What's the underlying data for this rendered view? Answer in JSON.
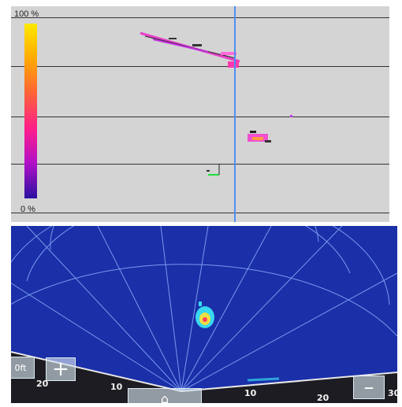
{
  "histogram": {
    "scale_max_label": "100 %",
    "scale_min_label": "0 %"
  },
  "sonar": {
    "zoom_in_label": "+",
    "zoom_out_label": "–",
    "depth_unit_label": "0ft",
    "range_labels": [
      "20",
      "10",
      "10",
      "20",
      "30"
    ]
  },
  "colors": {
    "histogram_bg": "#d4d4d4",
    "sonar_bg": "#1a2fa8",
    "cursor": "#4f8df5",
    "grid": "#8fb4ff"
  },
  "icons": {
    "home": "home-icon"
  }
}
